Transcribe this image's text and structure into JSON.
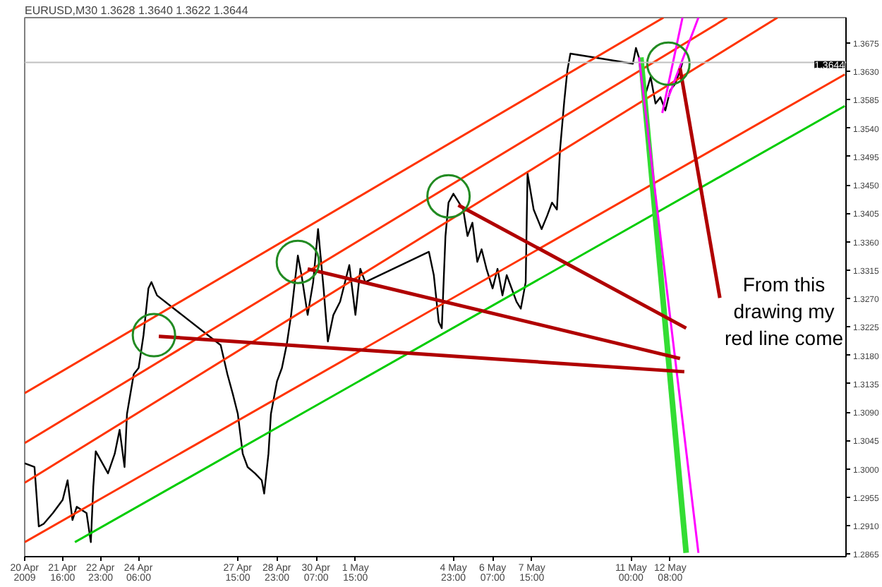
{
  "chart_data": {
    "type": "line",
    "title": "EURUSD,M30  1.3628 1.3640 1.3622 1.3644",
    "grid": false,
    "xlim": [
      "2009-04-20T09:00",
      "2009-05-18T07:30"
    ],
    "ylim": [
      1.2861,
      1.3715
    ],
    "xticks": [
      {
        "value": "2009-04-20T09:00",
        "label": "20 Apr 2009"
      },
      {
        "value": "2009-04-21T16:00",
        "label": "21 Apr 16:00"
      },
      {
        "value": "2009-04-22T23:00",
        "label": "22 Apr 23:00"
      },
      {
        "value": "2009-04-24T06:00",
        "label": "24 Apr 06:00"
      },
      {
        "value": "2009-04-27T15:00",
        "label": "27 Apr 15:00"
      },
      {
        "value": "2009-04-28T23:00",
        "label": "28 Apr 23:00"
      },
      {
        "value": "2009-04-30T07:00",
        "label": "30 Apr 07:00"
      },
      {
        "value": "2009-05-01T15:00",
        "label": "1 May 15:00"
      },
      {
        "value": "2009-05-04T23:00",
        "label": "4 May 23:00"
      },
      {
        "value": "2009-05-06T07:00",
        "label": "6 May 07:00"
      },
      {
        "value": "2009-05-07T15:00",
        "label": "7 May 15:00"
      },
      {
        "value": "2009-05-11T00:00",
        "label": "11 May 00:00"
      },
      {
        "value": "2009-05-12T08:00",
        "label": "12 May 08:00"
      }
    ],
    "yticks": [
      1.3675,
      {
        "value": 1.363,
        "label": "1.3630"
      },
      1.3585,
      {
        "value": 1.354,
        "label": "1.3540"
      },
      1.3495,
      {
        "value": 1.345,
        "label": "1.3450"
      },
      1.3405,
      {
        "value": 1.336,
        "label": "1.3360"
      },
      1.3315,
      {
        "value": 1.327,
        "label": "1.3270"
      },
      1.3225,
      {
        "value": 1.318,
        "label": "1.3180"
      },
      1.3135,
      {
        "value": 1.309,
        "label": "1.3090"
      },
      1.3045,
      {
        "value": 1.3,
        "label": "1.3000"
      },
      1.2955,
      {
        "value": 1.291,
        "label": "1.2910"
      },
      1.2865
    ],
    "ref_lines": [
      {
        "axis": "y",
        "value": 1.3644,
        "label": "1.3644",
        "color": "#c0c0c0"
      }
    ],
    "annotations": [
      "From this drawing my red line come"
    ],
    "series": [
      {
        "color": "#000000",
        "x": [
          "2009-04-20T09:00",
          "2009-04-20T17:00",
          "2009-04-20T20:30",
          "2009-04-21T00:30",
          "2009-04-21T08:00",
          "2009-04-21T16:00",
          "2009-04-21T20:00",
          "2009-04-22T00:00",
          "2009-04-22T03:30",
          "2009-04-22T11:30",
          "2009-04-22T15:00",
          "2009-04-22T17:00",
          "2009-04-22T19:00",
          "2009-04-22T23:00",
          "2009-04-23T05:00",
          "2009-04-23T10:30",
          "2009-04-23T14:30",
          "2009-04-23T18:30",
          "2009-04-23T20:30",
          "2009-04-24T02:00",
          "2009-04-24T06:00",
          "2009-04-24T10:00",
          "2009-04-24T14:00",
          "2009-04-24T16:30",
          "2009-04-24T21:00",
          "2009-04-27T01:00",
          "2009-04-27T06:30",
          "2009-04-27T11:00",
          "2009-04-27T15:00",
          "2009-04-27T19:00",
          "2009-04-27T23:00",
          "2009-04-28T05:00",
          "2009-04-28T10:30",
          "2009-04-28T12:30",
          "2009-04-28T16:00",
          "2009-04-28T18:00",
          "2009-04-28T23:00",
          "2009-04-29T03:00",
          "2009-04-29T07:00",
          "2009-04-29T10:30",
          "2009-04-29T16:00",
          "2009-04-29T19:00",
          "2009-04-30T00:00",
          "2009-04-30T04:30",
          "2009-04-30T08:30",
          "2009-04-30T13:00",
          "2009-04-30T16:30",
          "2009-04-30T21:00",
          "2009-05-01T02:30",
          "2009-05-01T10:00",
          "2009-05-01T15:00",
          "2009-05-01T19:00",
          "2009-05-01T23:00",
          "2009-05-04T03:00",
          "2009-05-04T07:00",
          "2009-05-04T11:00",
          "2009-05-04T13:30",
          "2009-05-04T16:30",
          "2009-05-04T19:00",
          "2009-05-04T23:00",
          "2009-05-05T07:00",
          "2009-05-05T10:30",
          "2009-05-05T14:30",
          "2009-05-05T18:30",
          "2009-05-05T22:00",
          "2009-05-06T02:00",
          "2009-05-06T07:00",
          "2009-05-06T11:00",
          "2009-05-06T15:00",
          "2009-05-06T18:30",
          "2009-05-06T22:30",
          "2009-05-07T02:30",
          "2009-05-07T06:00",
          "2009-05-07T10:00",
          "2009-05-07T11:30",
          "2009-05-07T16:30",
          "2009-05-07T23:00",
          "2009-05-08T03:30",
          "2009-05-08T07:30",
          "2009-05-08T11:30",
          "2009-05-08T14:00",
          "2009-05-08T17:30",
          "2009-05-08T20:00",
          "2009-05-08T22:30",
          "2009-05-11T01:30",
          "2009-05-11T04:00",
          "2009-05-11T08:00",
          "2009-05-11T12:00",
          "2009-05-11T16:00",
          "2009-05-11T20:00",
          "2009-05-12T00:00",
          "2009-05-12T04:00",
          "2009-05-12T08:00",
          "2009-05-12T12:00",
          "2009-05-12T16:00",
          "2009-05-12T18:00"
        ],
        "values": [
          1.3009,
          1.3003,
          1.2909,
          1.2913,
          1.293,
          1.2951,
          1.2982,
          1.2919,
          1.294,
          1.293,
          1.2884,
          1.2972,
          1.3028,
          1.3014,
          1.2993,
          1.3024,
          1.3062,
          1.3003,
          1.3087,
          1.315,
          1.316,
          1.3212,
          1.3286,
          1.3296,
          1.3275,
          1.3196,
          1.315,
          1.3118,
          1.3087,
          1.3024,
          1.3003,
          1.2993,
          1.2982,
          1.2961,
          1.3024,
          1.3087,
          1.3139,
          1.316,
          1.3198,
          1.3244,
          1.3338,
          1.3307,
          1.3244,
          1.3296,
          1.338,
          1.3286,
          1.3202,
          1.3244,
          1.3265,
          1.3323,
          1.3244,
          1.3317,
          1.3296,
          1.3344,
          1.3307,
          1.3233,
          1.3223,
          1.3369,
          1.3422,
          1.3436,
          1.3411,
          1.3369,
          1.339,
          1.3328,
          1.3348,
          1.3317,
          1.3286,
          1.3317,
          1.3275,
          1.3307,
          1.3286,
          1.3265,
          1.3254,
          1.3296,
          1.3468,
          1.3411,
          1.338,
          1.3401,
          1.3422,
          1.3411,
          1.3505,
          1.3583,
          1.3631,
          1.3658,
          1.3642,
          1.3667,
          1.3642,
          1.3595,
          1.3621,
          1.3579,
          1.3589,
          1.3568,
          1.36,
          1.361,
          1.3631,
          1.3644
        ]
      },
      {
        "color": "#ff3300",
        "x": [
          "2009-04-20T09:00",
          "2009-05-12T02:30"
        ],
        "values": [
          1.312,
          1.3715
        ]
      },
      {
        "color": "#ff3300",
        "x": [
          "2009-04-20T09:00",
          "2009-05-14T06:30"
        ],
        "values": [
          1.3041,
          1.3715
        ]
      },
      {
        "color": "#ff3300",
        "x": [
          "2009-04-20T09:00",
          "2009-05-15T23:30"
        ],
        "values": [
          1.2978,
          1.3715
        ]
      },
      {
        "color": "#ff3300",
        "x": [
          "2009-04-20T09:00",
          "2009-05-18T06:30"
        ],
        "values": [
          1.2884,
          1.3625
        ]
      },
      {
        "color": "#00cc00",
        "x": [
          "2009-04-22T02:00",
          "2009-05-18T06:30"
        ],
        "values": [
          1.2884,
          1.3575
        ]
      },
      {
        "color": "#33dd33",
        "x": [
          "2009-05-11T08:00",
          "2009-05-12T21:00"
        ],
        "values": [
          1.3652,
          1.2867
        ]
      },
      {
        "color": "#ff00ff",
        "x": [
          "2009-05-11T06:30",
          "2009-05-13T07:00"
        ],
        "values": [
          1.3652,
          1.2867
        ]
      },
      {
        "color": "#ff00ff",
        "x": [
          "2009-05-12T01:30",
          "2009-05-12T18:00"
        ],
        "values": [
          1.3564,
          1.3715
        ]
      },
      {
        "color": "#ff00ff",
        "x": [
          "2009-05-12T06:30",
          "2009-05-13T07:00"
        ],
        "values": [
          1.3589,
          1.3715
        ]
      },
      {
        "color": "#b00000",
        "x": [
          "2009-04-24T22:30",
          "2009-05-12T19:30"
        ],
        "values": [
          1.321,
          1.3154
        ]
      },
      {
        "color": "#b00000",
        "x": [
          "2009-04-30T00:00",
          "2009-05-12T16:00"
        ],
        "values": [
          1.3317,
          1.3175
        ]
      },
      {
        "color": "#b00000",
        "x": [
          "2009-05-05T03:00",
          "2009-05-12T21:00"
        ],
        "values": [
          1.3418,
          1.3223
        ]
      },
      {
        "color": "#b00000",
        "x": [
          "2009-05-12T16:00",
          "2009-05-14T00:30"
        ],
        "values": [
          1.3635,
          1.3271
        ]
      },
      {
        "type": "scatter",
        "marker": "circle",
        "color": "#228b22",
        "x": [
          "2009-04-24T18:30",
          "2009-04-29T16:00",
          "2009-05-04T19:00",
          "2009-05-12T06:30"
        ],
        "values": [
          1.3212,
          1.3328,
          1.3432,
          1.3642
        ]
      }
    ]
  }
}
